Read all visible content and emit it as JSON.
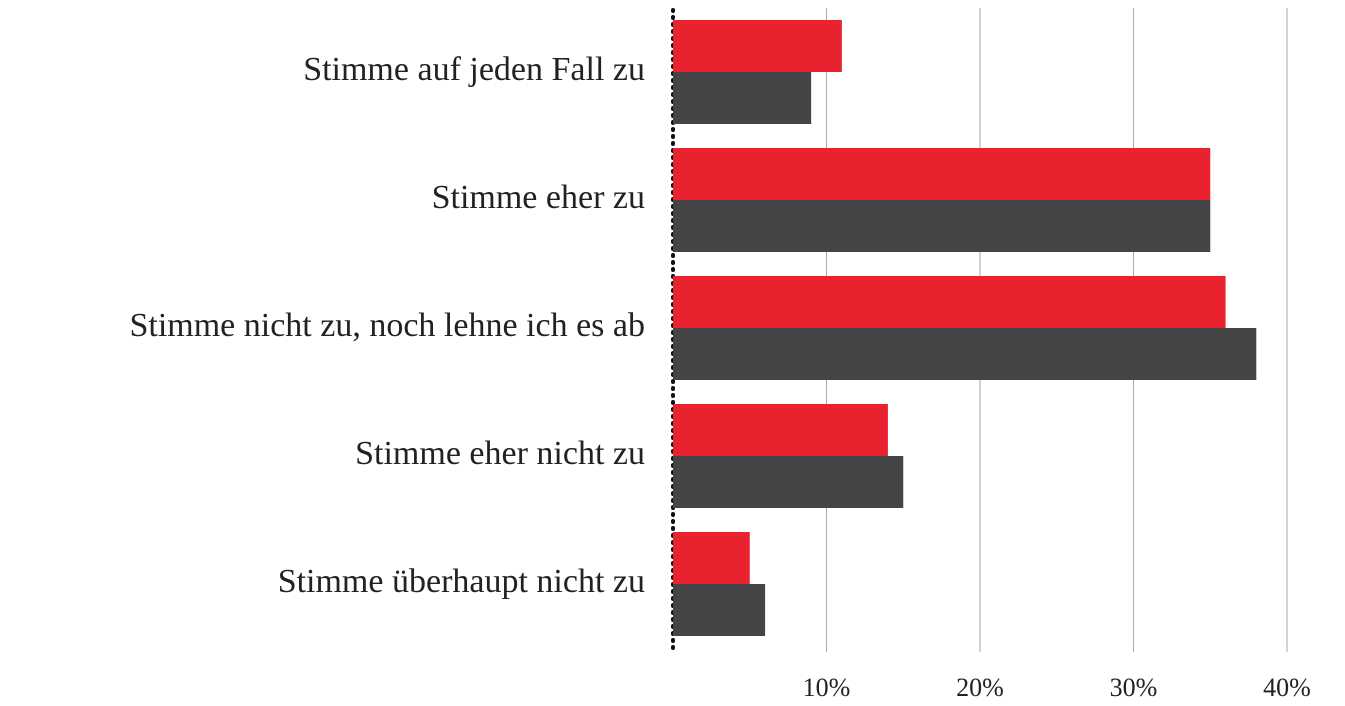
{
  "chart_data": {
    "type": "bar",
    "orientation": "horizontal",
    "categories": [
      "Stimme auf jeden Fall zu",
      "Stimme eher zu",
      "Stimme nicht zu, noch lehne ich es ab",
      "Stimme eher nicht zu",
      "Stimme überhaupt nicht zu"
    ],
    "series": [
      {
        "color": "#e8222f",
        "values": [
          11,
          35,
          36,
          14,
          5
        ]
      },
      {
        "color": "#454547",
        "values": [
          9,
          35,
          38,
          15,
          6
        ]
      }
    ],
    "xlim": [
      0,
      40
    ],
    "xticks": [
      {
        "value": 10,
        "label": "10%"
      },
      {
        "value": 20,
        "label": "20%"
      },
      {
        "value": 30,
        "label": "30%"
      },
      {
        "value": 40,
        "label": "40%"
      }
    ],
    "grid": true
  }
}
